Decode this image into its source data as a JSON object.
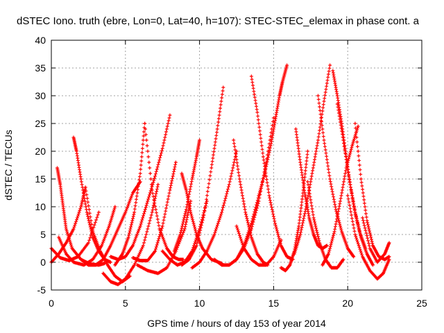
{
  "chart_data": {
    "type": "scatter",
    "title": "dSTEC Iono. truth (ebre, Lon=0, Lat=40, h=107): STEC-STEC_elemax in phase cont. a",
    "xlabel": "GPS time / hours of day 153 of year 2014",
    "ylabel": "dSTEC  / TECUs",
    "xlim": [
      0,
      25
    ],
    "ylim": [
      -5,
      40
    ],
    "xticks": [
      "0",
      "5",
      "10",
      "15",
      "20",
      "25"
    ],
    "yticks": [
      "-5",
      "0",
      "5",
      "10",
      "15",
      "20",
      "25",
      "30",
      "35",
      "40"
    ],
    "grid": true,
    "marker": "+",
    "color": "#ff0000",
    "series": [
      {
        "x": [
          0.0,
          0.6,
          1.2,
          1.8,
          2.5,
          3.2
        ],
        "y": [
          2.5,
          0.8,
          0.3,
          1.0,
          3.5,
          9.0
        ]
      },
      {
        "x": [
          0.4,
          0.6,
          0.8,
          1.0,
          1.4,
          2.0,
          2.6,
          3.2,
          3.6
        ],
        "y": [
          17.0,
          14.0,
          10.0,
          6.0,
          2.5,
          0.5,
          -0.3,
          -0.5,
          -0.2
        ]
      },
      {
        "x": [
          0.0,
          0.5,
          1.0,
          1.5,
          2.0,
          2.3
        ],
        "y": [
          0.0,
          1.5,
          3.5,
          6.0,
          10.0,
          13.5
        ]
      },
      {
        "x": [
          1.5,
          1.7,
          2.0,
          2.4,
          2.8,
          3.2,
          3.6,
          4.0
        ],
        "y": [
          22.5,
          20.0,
          15.0,
          9.0,
          4.5,
          2.0,
          0.5,
          0.0
        ]
      },
      {
        "x": [
          0.5,
          1.0,
          1.5,
          2.2,
          2.8,
          3.4,
          3.9,
          4.3
        ],
        "y": [
          4.5,
          1.5,
          0.0,
          -0.5,
          0.5,
          3.0,
          6.5,
          10.0
        ]
      },
      {
        "x": [
          2.0,
          2.5,
          3.0,
          3.5,
          4.0,
          4.5,
          5.0,
          5.5,
          6.0
        ],
        "y": [
          0.5,
          -0.5,
          -0.5,
          0.5,
          3.0,
          6.0,
          9.0,
          12.5,
          14.5
        ]
      },
      {
        "x": [
          2.3,
          2.8,
          3.3,
          3.8,
          4.3,
          4.8,
          5.3
        ],
        "y": [
          13.5,
          5.5,
          2.0,
          -0.5,
          -2.5,
          -3.5,
          -2.5
        ]
      },
      {
        "x": [
          3.5,
          4.0,
          4.5,
          5.0,
          5.6,
          6.2,
          6.8,
          7.2
        ],
        "y": [
          -2.0,
          -3.5,
          -4.0,
          -3.0,
          -0.5,
          3.0,
          9.0,
          14.0
        ]
      },
      {
        "x": [
          4.3,
          4.8,
          5.2,
          5.6,
          6.0,
          6.3
        ],
        "y": [
          -0.5,
          1.5,
          4.5,
          9.0,
          16.0,
          25.0
        ]
      },
      {
        "x": [
          4.0,
          4.5,
          5.0,
          5.5,
          6.0,
          6.5,
          7.0,
          7.5,
          8.0
        ],
        "y": [
          1.0,
          0.5,
          1.0,
          3.0,
          6.5,
          11.0,
          15.5,
          20.5,
          26.5
        ]
      },
      {
        "x": [
          5.5,
          6.0,
          6.5,
          7.0,
          7.5,
          8.0,
          8.4
        ],
        "y": [
          0.8,
          0.3,
          0.3,
          2.0,
          6.5,
          13.0,
          18.0
        ]
      },
      {
        "x": [
          5.8,
          6.5,
          7.2,
          7.8,
          8.4,
          9.0,
          9.4
        ],
        "y": [
          -0.5,
          -1.5,
          -2.0,
          -1.0,
          2.0,
          6.0,
          11.0
        ]
      },
      {
        "x": [
          6.3,
          6.8,
          7.3,
          7.8,
          8.2,
          8.6,
          8.9
        ],
        "y": [
          25.0,
          13.0,
          6.0,
          2.5,
          1.0,
          0.5,
          0.5
        ]
      },
      {
        "x": [
          7.5,
          8.0,
          8.5,
          9.0,
          9.5,
          10.0,
          10.5
        ],
        "y": [
          2.0,
          0.5,
          -0.5,
          0.0,
          2.0,
          6.0,
          11.0
        ]
      },
      {
        "x": [
          8.3,
          8.7,
          9.1,
          9.5,
          9.8,
          10.0
        ],
        "y": [
          2.0,
          5.0,
          9.5,
          15.0,
          19.0,
          22.0
        ]
      },
      {
        "x": [
          8.8,
          9.1,
          9.4,
          9.8,
          10.2,
          10.8,
          11.5
        ],
        "y": [
          16.0,
          13.0,
          9.0,
          5.0,
          2.5,
          0.5,
          -0.2
        ]
      },
      {
        "x": [
          8.8,
          9.3,
          9.8,
          10.3,
          10.8,
          11.2,
          11.6
        ],
        "y": [
          -0.5,
          0.5,
          3.0,
          8.5,
          17.0,
          24.0,
          31.5
        ]
      },
      {
        "x": [
          9.5,
          10.0,
          10.5,
          11.0,
          11.5,
          12.0,
          12.5
        ],
        "y": [
          -1.0,
          0.0,
          2.0,
          5.0,
          9.0,
          14.0,
          20.0
        ]
      },
      {
        "x": [
          11.0,
          11.5,
          12.0,
          12.5,
          13.0,
          13.5,
          14.0
        ],
        "y": [
          0.5,
          -0.5,
          -0.5,
          0.5,
          3.0,
          7.0,
          12.0
        ]
      },
      {
        "x": [
          12.3,
          12.7,
          13.1,
          13.5,
          13.9,
          14.3,
          14.6
        ],
        "y": [
          22.0,
          15.0,
          9.0,
          4.5,
          1.5,
          0.0,
          -0.5
        ]
      },
      {
        "x": [
          12.0,
          12.5,
          13.0,
          13.5,
          14.0,
          14.5,
          15.0
        ],
        "y": [
          -0.5,
          0.5,
          2.5,
          6.0,
          11.0,
          18.0,
          26.0
        ]
      },
      {
        "x": [
          12.5,
          13.0,
          13.5,
          14.0,
          14.5,
          15.0,
          15.5
        ],
        "y": [
          6.5,
          2.5,
          0.5,
          -0.5,
          -0.5,
          1.0,
          4.0
        ]
      },
      {
        "x": [
          13.5,
          13.9,
          14.3,
          14.7,
          15.1,
          15.5,
          15.9,
          16.3
        ],
        "y": [
          33.5,
          27.0,
          19.0,
          12.0,
          7.0,
          3.0,
          1.0,
          0.5
        ]
      },
      {
        "x": [
          14.0,
          14.4,
          14.8,
          15.1,
          15.4,
          15.6,
          15.9
        ],
        "y": [
          12.0,
          16.0,
          21.0,
          25.5,
          30.0,
          32.5,
          35.5
        ]
      },
      {
        "x": [
          15.5,
          15.8,
          16.1,
          16.4,
          16.7,
          17.0,
          17.3
        ],
        "y": [
          -1.0,
          -1.5,
          -0.5,
          2.0,
          6.5,
          13.0,
          20.0
        ]
      },
      {
        "x": [
          16.5,
          16.8,
          17.1,
          17.4,
          17.7,
          18.0,
          18.3,
          18.6
        ],
        "y": [
          24.0,
          18.0,
          12.5,
          8.0,
          5.0,
          3.0,
          2.5,
          3.0
        ]
      },
      {
        "x": [
          16.4,
          16.8,
          17.2,
          17.6,
          18.0,
          18.4,
          18.8
        ],
        "y": [
          1.5,
          5.0,
          10.0,
          16.0,
          22.0,
          29.0,
          35.5
        ]
      },
      {
        "x": [
          17.3,
          17.7,
          18.1,
          18.5,
          18.9,
          19.3,
          19.7
        ],
        "y": [
          14.5,
          8.0,
          3.5,
          0.5,
          -1.0,
          -1.0,
          0.5
        ]
      },
      {
        "x": [
          18.0,
          18.4,
          18.8,
          19.2,
          19.6,
          20.0,
          20.4
        ],
        "y": [
          30.0,
          22.0,
          15.0,
          9.5,
          5.5,
          2.5,
          1.0
        ]
      },
      {
        "x": [
          18.3,
          18.7,
          19.1,
          19.5,
          19.9,
          20.3,
          20.7
        ],
        "y": [
          -0.5,
          1.5,
          5.5,
          11.0,
          17.0,
          21.0,
          24.5
        ]
      },
      {
        "x": [
          19.0,
          19.3,
          19.6,
          19.9,
          20.2,
          20.5,
          20.8,
          21.2
        ],
        "y": [
          34.5,
          30.0,
          25.0,
          19.0,
          13.5,
          9.0,
          5.5,
          2.5
        ]
      },
      {
        "x": [
          19.3,
          19.7,
          20.1,
          20.5,
          20.9,
          21.3,
          21.7
        ],
        "y": [
          28.5,
          22.0,
          15.0,
          9.0,
          4.5,
          1.5,
          -0.5
        ]
      },
      {
        "x": [
          20.5,
          20.9,
          21.3,
          21.7,
          22.1,
          22.5,
          22.8
        ],
        "y": [
          25.0,
          15.0,
          7.5,
          3.0,
          1.0,
          0.5,
          1.0
        ]
      },
      {
        "x": [
          20.0,
          20.5,
          21.0,
          21.5,
          22.0,
          22.4,
          22.8
        ],
        "y": [
          12.0,
          5.0,
          1.0,
          -1.5,
          -3.0,
          -2.0,
          0.5
        ]
      },
      {
        "x": [
          21.0,
          21.5,
          22.0,
          22.5,
          22.8
        ],
        "y": [
          8.0,
          2.5,
          0.0,
          1.5,
          3.5
        ]
      }
    ]
  }
}
